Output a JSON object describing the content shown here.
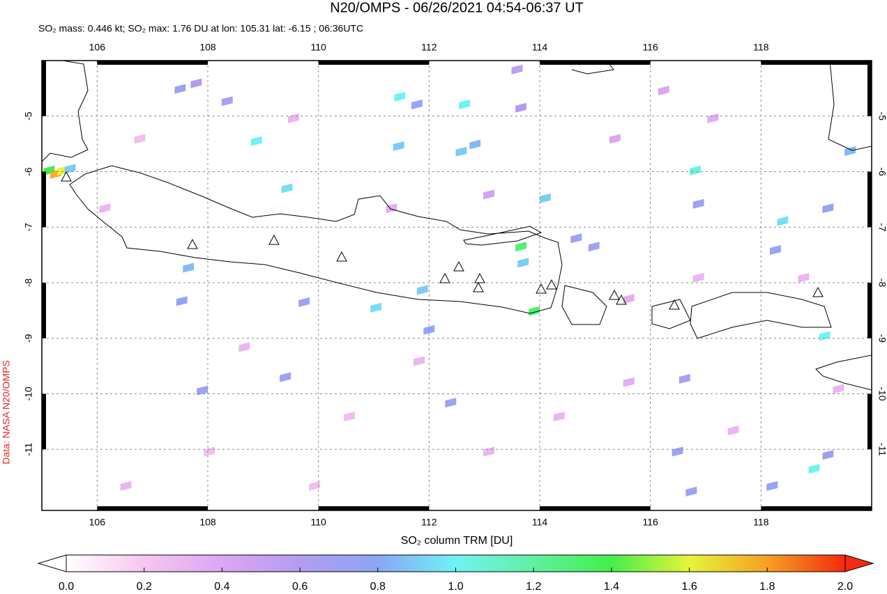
{
  "chart_data": {
    "type": "map",
    "title": "N20/OMPS - 06/26/2021 04:54-06:37 UT",
    "subtitle": "SO₂ mass: 0.446 kt; SO₂ max: 1.76 DU at lon: 105.31 lat: -6.15 ; 06:36UTC",
    "colorbar_label": "SO₂ column TRM [DU]",
    "credit": "Data: NASA N20/OMPS",
    "xlim": [
      105,
      120
    ],
    "ylim": [
      -12.1,
      -4
    ],
    "xticks": [
      106,
      108,
      110,
      112,
      114,
      116,
      118
    ],
    "yticks": [
      -5,
      -6,
      -7,
      -8,
      -9,
      -10,
      -11
    ],
    "grid": true,
    "clim": [
      0,
      2
    ],
    "colormap": [
      "#ffffff",
      "#f7c6ee",
      "#dca6f3",
      "#b49cf0",
      "#8aa6f6",
      "#70f2f4",
      "#60f0a0",
      "#44ee4c",
      "#e6f43a",
      "#f5a022",
      "#f42a10"
    ],
    "colorbar_ticks": [
      {
        "value": 0,
        "label": "0.0"
      },
      0.2,
      0.4,
      0.6,
      0.8,
      {
        "value": 1,
        "label": "1.0"
      },
      1.2,
      1.4,
      1.6,
      1.8,
      {
        "value": 2,
        "label": "2.0"
      }
    ],
    "cells": {
      "lon": [
        111.47,
        112.64,
        111.78,
        111.45,
        112.58,
        112.83,
        108.88,
        109.43,
        105.13,
        105.25,
        105.38,
        105.51,
        107.5,
        107.79,
        108.35,
        113.59,
        113.66,
        114.1,
        113.66,
        113.7,
        113.9,
        114.98,
        114.66,
        116.87,
        116.81,
        118.39,
        119.21,
        119.15,
        118.96,
        119.21,
        118.2,
        116.49,
        116.74,
        116.62,
        112.39,
        111.04,
        111.88,
        112.0,
        109.74,
        109.4,
        107.9,
        107.65,
        107.53,
        119.61,
        118.26,
        106.14,
        106.77,
        108.66,
        110.56,
        113.08,
        115.61,
        117.5,
        118.77,
        115.36,
        116.24,
        117.13,
        109.55,
        111.32,
        113.08,
        111.82,
        114.35,
        108.03,
        106.52,
        109.93,
        119.4,
        115.61,
        116.87
      ],
      "lat": [
        -4.65,
        -4.79,
        -4.79,
        -5.54,
        -5.64,
        -5.51,
        -5.45,
        -6.3,
        -5.98,
        -6.04,
        -5.98,
        -5.95,
        -4.51,
        -4.41,
        -4.73,
        -4.16,
        -4.85,
        -6.48,
        -7.35,
        -7.64,
        -8.51,
        -7.35,
        -7.2,
        -6.58,
        -5.98,
        -6.89,
        -6.66,
        -8.96,
        -11.35,
        -11.1,
        -11.66,
        -11.04,
        -11.76,
        -9.73,
        -10.16,
        -8.45,
        -8.13,
        -8.85,
        -8.35,
        -9.7,
        -9.94,
        -7.73,
        -8.33,
        -5.63,
        -7.41,
        -6.66,
        -5.41,
        -9.16,
        -10.41,
        -11.04,
        -9.79,
        -10.66,
        -7.91,
        -5.41,
        -4.54,
        -5.04,
        -5.04,
        -6.66,
        -6.41,
        -9.41,
        -10.41,
        -11.04,
        -11.66,
        -11.66,
        -9.91,
        -8.29,
        -7.91
      ],
      "values": [
        1.0,
        1.0,
        0.75,
        0.9,
        0.9,
        0.85,
        1.0,
        0.95,
        1.4,
        1.76,
        1.6,
        0.9,
        0.7,
        0.6,
        0.65,
        0.55,
        0.6,
        0.9,
        1.3,
        0.9,
        1.3,
        0.7,
        0.7,
        0.7,
        1.05,
        0.95,
        0.75,
        1.0,
        1.0,
        0.7,
        0.75,
        0.7,
        0.7,
        0.65,
        0.7,
        0.95,
        0.9,
        0.75,
        0.7,
        0.7,
        0.7,
        0.85,
        0.75,
        0.85,
        0.75,
        0.3,
        0.25,
        0.3,
        0.25,
        0.3,
        0.35,
        0.3,
        0.3,
        0.4,
        0.4,
        0.35,
        0.3,
        0.35,
        0.45,
        0.3,
        0.3,
        0.25,
        0.3,
        0.25,
        0.3,
        0.35,
        0.3
      ]
    }
  }
}
